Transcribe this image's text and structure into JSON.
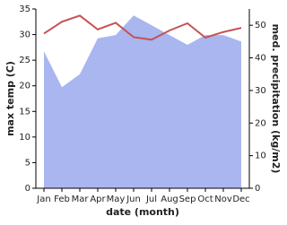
{
  "chart_data": {
    "type": "line",
    "x_label": "date (month)",
    "y_label": "max temp (C)",
    "y2_label": "med. precipitation (kg/m2)",
    "categories": [
      "Jan",
      "Feb",
      "Mar",
      "Apr",
      "May",
      "Jun",
      "Jul",
      "Aug",
      "Sep",
      "Oct",
      "Nov",
      "Dec"
    ],
    "series": [
      {
        "name": "med. precipitation",
        "kind": "area",
        "axis": "y2",
        "color": "#aab6ef",
        "values": [
          42,
          31,
          35,
          46,
          47,
          53,
          50,
          47,
          44,
          47,
          47,
          45
        ]
      },
      {
        "name": "max temp",
        "kind": "line",
        "axis": "y",
        "color": "#c65256",
        "values": [
          30.2,
          32.5,
          33.7,
          31,
          32.3,
          29.5,
          29,
          30.8,
          32.2,
          29.4,
          30.5,
          31.3
        ]
      }
    ],
    "ylim": [
      0,
      35
    ],
    "yticks": [
      0,
      5,
      10,
      15,
      20,
      25,
      30,
      35
    ],
    "y2lim": [
      0,
      55
    ],
    "y2ticks": [
      0,
      10,
      20,
      30,
      40,
      50
    ]
  }
}
